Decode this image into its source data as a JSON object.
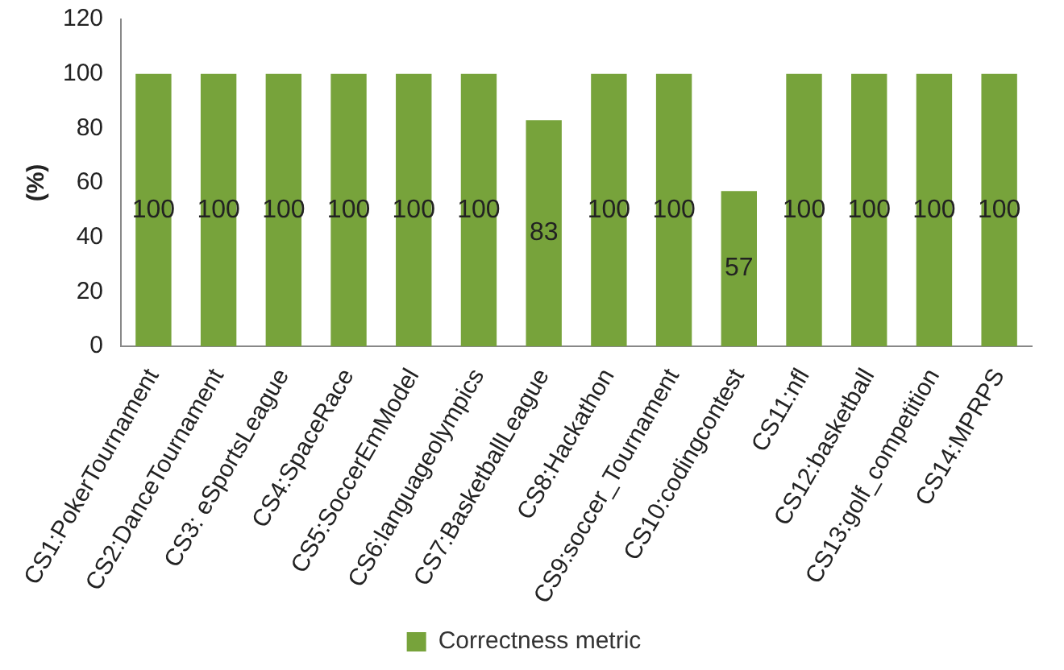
{
  "chart_data": {
    "type": "bar",
    "ylabel": "(%)",
    "categories": [
      "CS1:PokerTournament",
      "CS2:DanceTournament",
      "CS3: eSportsLeague",
      "CS4:SpaceRace",
      "CS5:SoccerEmModel",
      "CS6:languageolympics",
      "CS7:BasketballLeague",
      "CS8:Hackathon",
      "CS9:soccer_Tournament",
      "CS10:codingcontest",
      "CS11:nfl",
      "CS12:basketball",
      "CS13:golf_competition",
      "CS14:MPRPS"
    ],
    "series": [
      {
        "name": "Correctness metric",
        "color": "#77a33b",
        "values": [
          100,
          100,
          100,
          100,
          100,
          100,
          83,
          100,
          100,
          57,
          100,
          100,
          100,
          100
        ]
      }
    ],
    "ylim": [
      0,
      120
    ],
    "yticks": [
      0,
      20,
      40,
      60,
      80,
      100,
      120
    ],
    "grid": false,
    "legend": "bottom",
    "data_labels": true
  }
}
